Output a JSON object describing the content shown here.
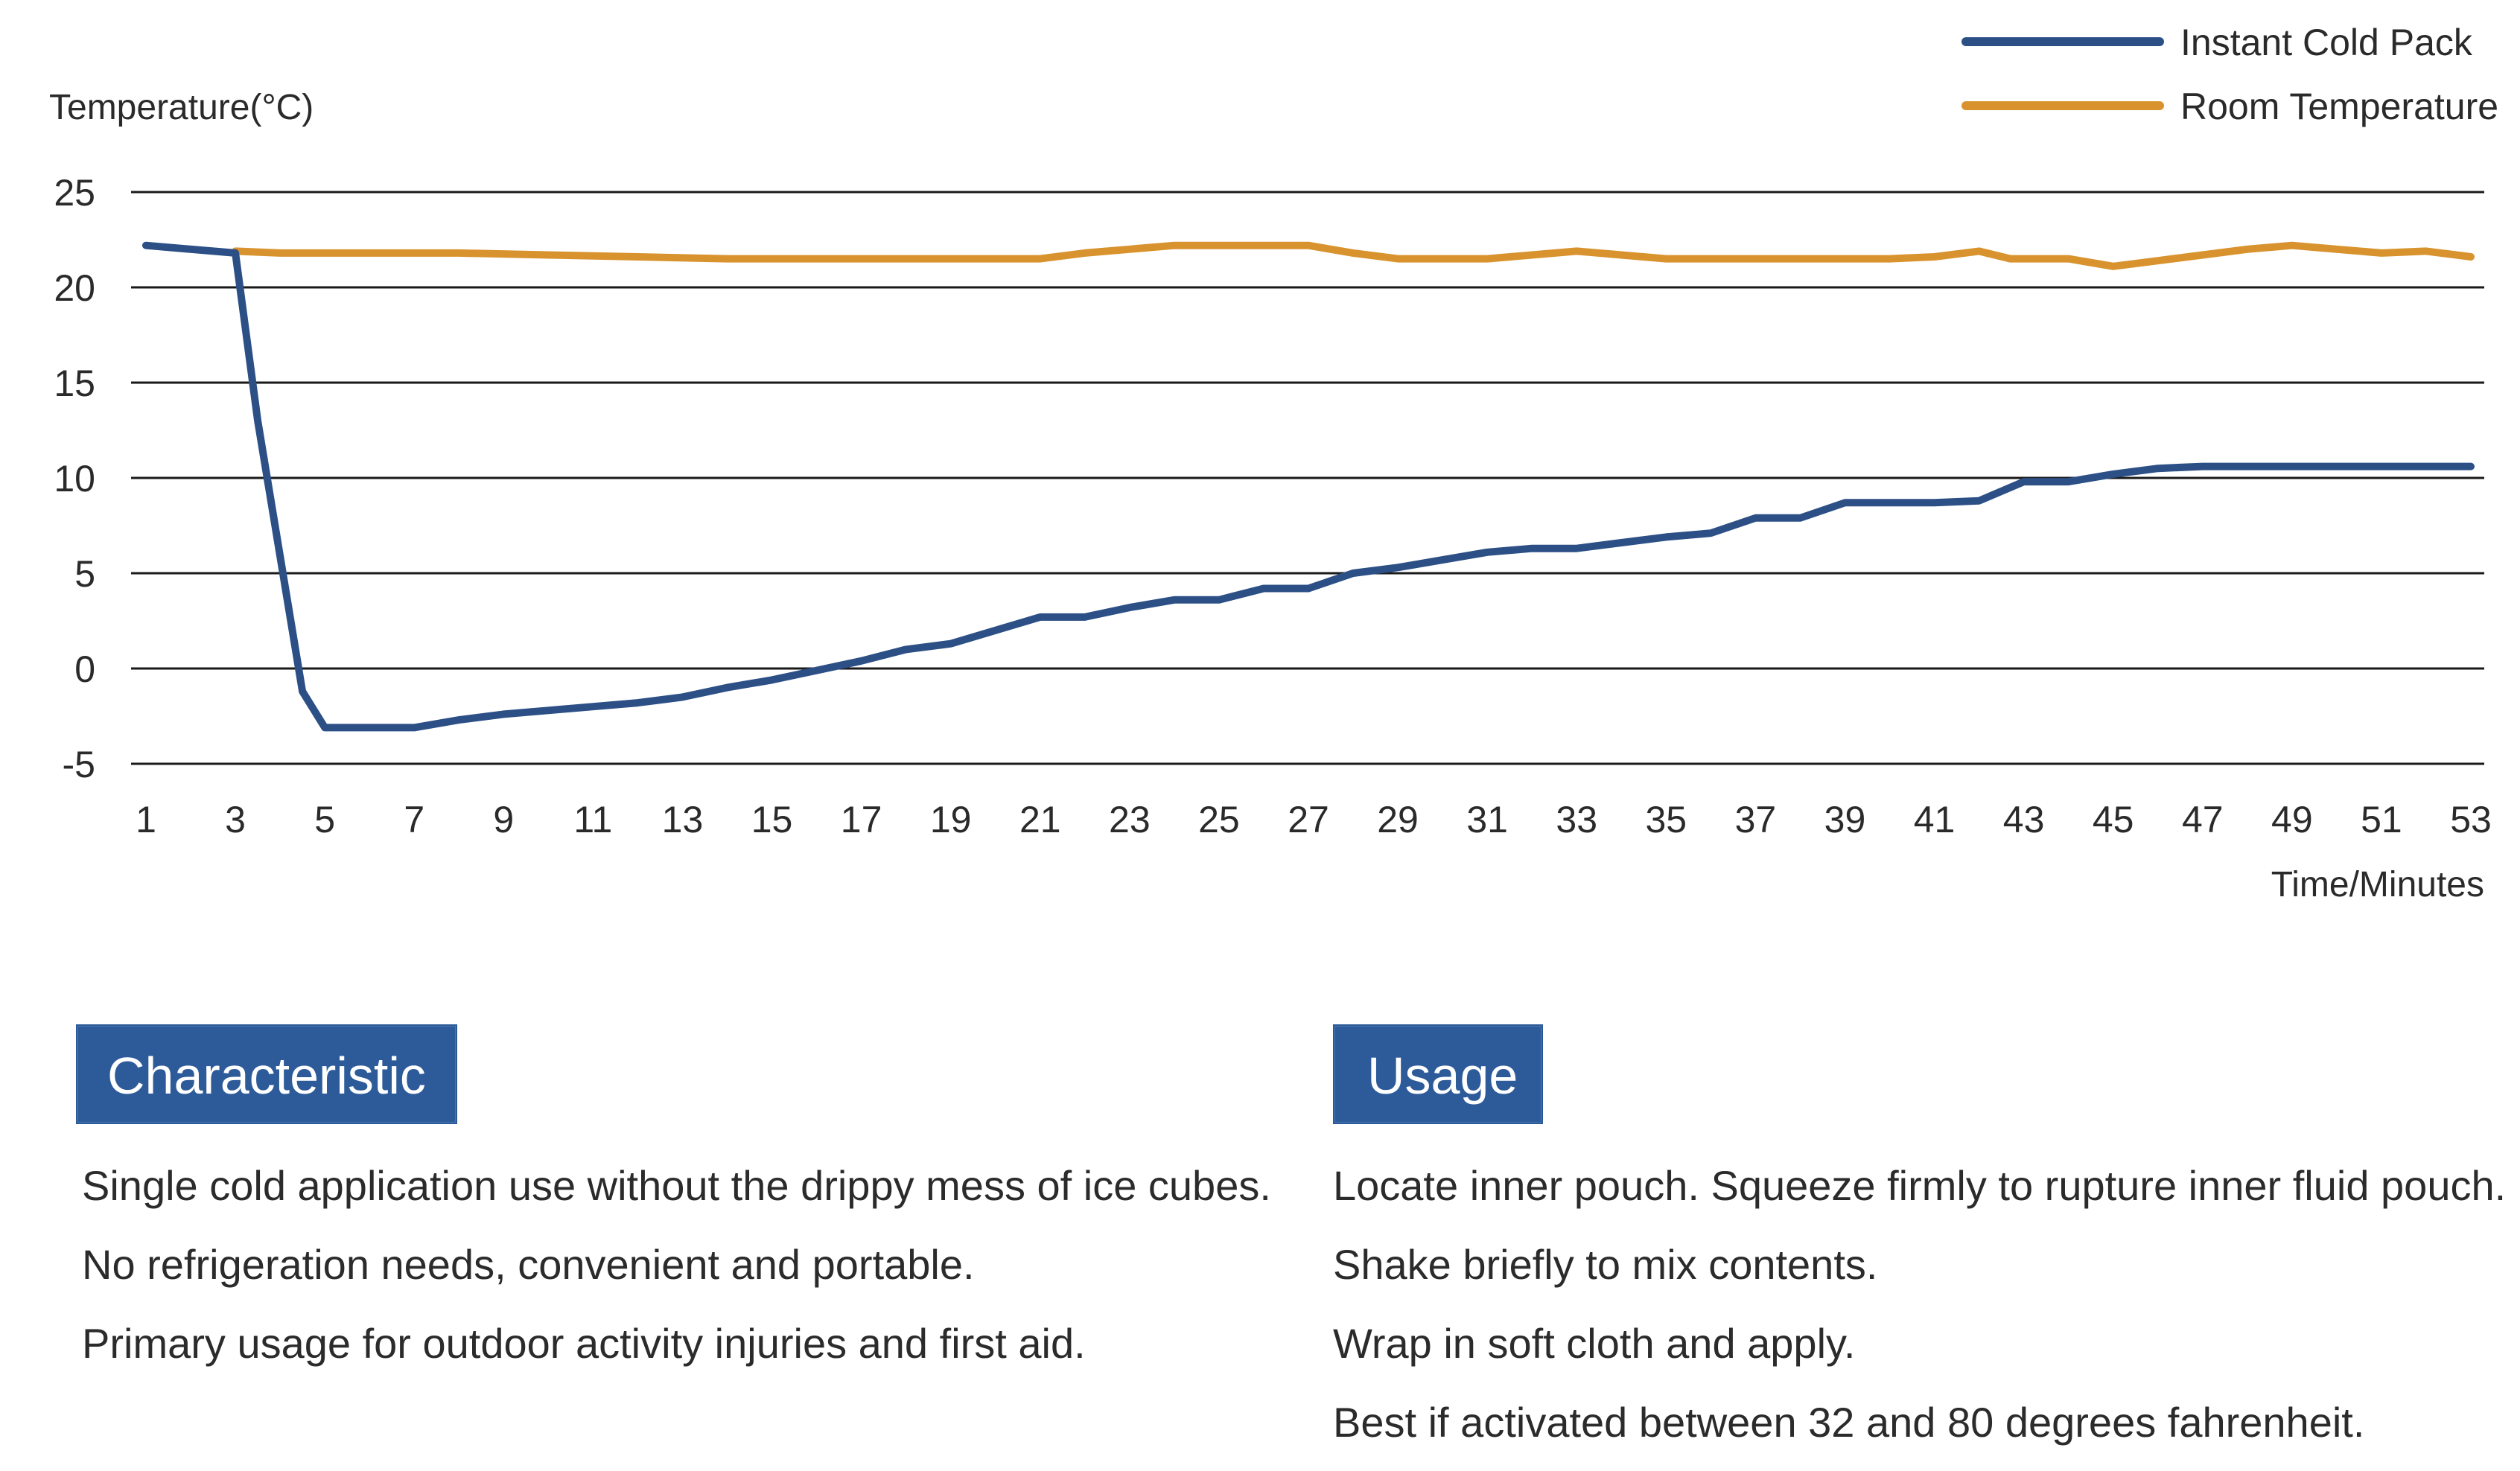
{
  "theme": {
    "cold_color": "#2c4f86",
    "room_color": "#d9932e",
    "grid_color": "#1a1a1a",
    "heading_bg": "#2d5b9a"
  },
  "chart_data": {
    "type": "line",
    "ylabel": "Temperature(°C)",
    "xlabel": "Time/Minutes",
    "ylim": [
      -5,
      25
    ],
    "yticks": [
      25,
      20,
      15,
      10,
      5,
      0,
      -5
    ],
    "xlim": [
      1,
      53
    ],
    "xticks": [
      1,
      3,
      5,
      7,
      9,
      11,
      13,
      15,
      17,
      19,
      21,
      23,
      25,
      27,
      29,
      31,
      33,
      35,
      37,
      39,
      41,
      43,
      45,
      47,
      49,
      51,
      53
    ],
    "legend_position": "top-right",
    "grid": "horizontal",
    "series": [
      {
        "name": "Instant Cold Pack",
        "color": "#2c4f86",
        "x": [
          1,
          3,
          3.5,
          4.5,
          5,
          6,
          7,
          8,
          9,
          10,
          11,
          12,
          13,
          14,
          15,
          16,
          17,
          18,
          19,
          20,
          21,
          22,
          23,
          24,
          25,
          26,
          27,
          28,
          29,
          30,
          31,
          32,
          33,
          34,
          35,
          36,
          37,
          38,
          39,
          40,
          41,
          42,
          43,
          44,
          45,
          46,
          47,
          48,
          49,
          50,
          51,
          52,
          53
        ],
        "y": [
          22.2,
          21.8,
          13,
          -1.2,
          -3.1,
          -3.1,
          -3.1,
          -2.7,
          -2.4,
          -2.2,
          -2.0,
          -1.8,
          -1.5,
          -1.0,
          -0.6,
          -0.1,
          0.4,
          1.0,
          1.3,
          2.0,
          2.7,
          2.7,
          3.2,
          3.6,
          3.6,
          4.2,
          4.2,
          5.0,
          5.3,
          5.7,
          6.1,
          6.3,
          6.3,
          6.6,
          6.9,
          7.1,
          7.9,
          7.9,
          8.7,
          8.7,
          8.7,
          8.8,
          9.8,
          9.8,
          10.2,
          10.5,
          10.6,
          10.6,
          10.6,
          10.6,
          10.6,
          10.6,
          10.6
        ]
      },
      {
        "name": "Room Temperature",
        "color": "#d9932e",
        "x": [
          3,
          4,
          6,
          8,
          10,
          12,
          14,
          16,
          18,
          20,
          21,
          22,
          23,
          24,
          25,
          26,
          27,
          28,
          29,
          30,
          31,
          32,
          33,
          34,
          35,
          36,
          37,
          38,
          39,
          40,
          41,
          42,
          42.7,
          43.2,
          44,
          45,
          46,
          47,
          48,
          49,
          50,
          51,
          52,
          53
        ],
        "y": [
          21.9,
          21.8,
          21.8,
          21.8,
          21.7,
          21.6,
          21.5,
          21.5,
          21.5,
          21.5,
          21.5,
          21.8,
          22.0,
          22.2,
          22.2,
          22.2,
          22.2,
          21.8,
          21.5,
          21.5,
          21.5,
          21.7,
          21.9,
          21.7,
          21.5,
          21.5,
          21.5,
          21.5,
          21.5,
          21.5,
          21.6,
          21.9,
          21.5,
          21.5,
          21.5,
          21.1,
          21.4,
          21.7,
          22.0,
          22.2,
          22.0,
          21.8,
          21.9,
          21.6
        ]
      }
    ]
  },
  "characteristic": {
    "heading": "Characteristic",
    "items": [
      "Single cold application use without the drippy mess of ice cubes.",
      "No refrigeration needs, convenient and portable.",
      "Primary usage for outdoor activity injuries and first aid."
    ]
  },
  "usage": {
    "heading": "Usage",
    "items": [
      "Locate inner pouch. Squeeze firmly to rupture inner fluid pouch.",
      "Shake briefly to mix contents.",
      "Wrap in soft cloth and apply.",
      "Best if activated between 32 and 80 degrees fahrenheit."
    ]
  }
}
